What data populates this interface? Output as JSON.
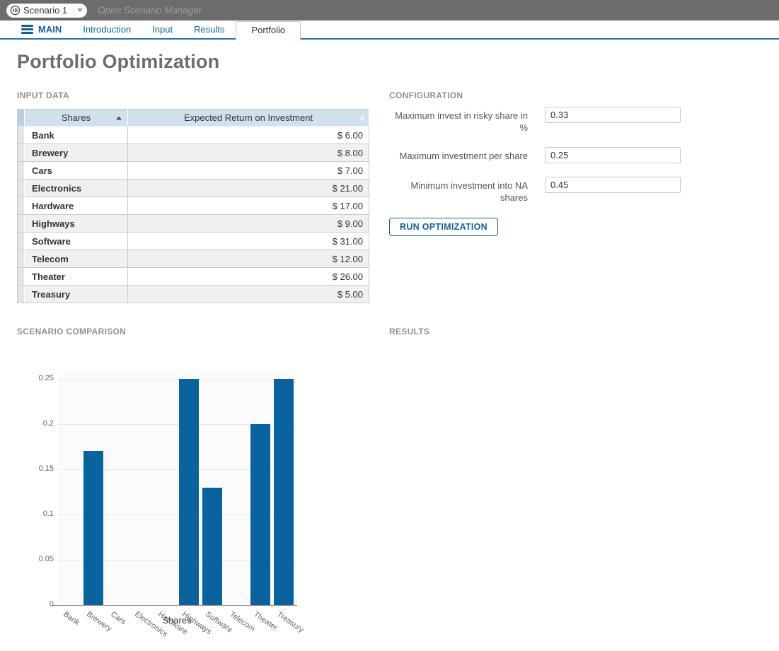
{
  "topbar": {
    "scenario_label": "Scenario 1",
    "manager_label": "Open Scenario Manager"
  },
  "nav": {
    "main_label": "MAIN",
    "tabs": [
      {
        "label": "Introduction"
      },
      {
        "label": "Input"
      },
      {
        "label": "Results"
      },
      {
        "label": "Portfolio"
      }
    ]
  },
  "page_title": "Portfolio Optimization",
  "sections": {
    "input_data": "INPUT DATA",
    "configuration": "CONFIGURATION",
    "scenario_comparison": "SCENARIO COMPARISON",
    "results": "RESULTS"
  },
  "table": {
    "columns": [
      "Shares",
      "Expected Return on Investment"
    ],
    "rows": [
      {
        "share": "Bank",
        "value": "$ 6.00"
      },
      {
        "share": "Brewery",
        "value": "$ 8.00"
      },
      {
        "share": "Cars",
        "value": "$ 7.00"
      },
      {
        "share": "Electronics",
        "value": "$ 21.00"
      },
      {
        "share": "Hardware",
        "value": "$ 17.00"
      },
      {
        "share": "Highways",
        "value": "$ 9.00"
      },
      {
        "share": "Software",
        "value": "$ 31.00"
      },
      {
        "share": "Telecom",
        "value": "$ 12.00"
      },
      {
        "share": "Theater",
        "value": "$ 26.00"
      },
      {
        "share": "Treasury",
        "value": "$ 5.00"
      }
    ]
  },
  "config": {
    "fields": [
      {
        "label": "Maximum invest in risky share in %",
        "value": "0.33"
      },
      {
        "label": "Maximum investment per share",
        "value": "0.25"
      },
      {
        "label": "Minimum investment into NA shares",
        "value": "0.45"
      }
    ],
    "run_label": "RUN OPTIMIZATION"
  },
  "chart_data": {
    "type": "bar",
    "title": "",
    "xlabel": "Shares",
    "ylabel": "",
    "categories": [
      "Bank",
      "Brewery",
      "Cars",
      "Electronics",
      "Hardware",
      "Highways",
      "Software",
      "Telecom",
      "Theater",
      "Treasury"
    ],
    "values": [
      0,
      0.17,
      0,
      0,
      0,
      0.25,
      0.13,
      0,
      0.2,
      0.25
    ],
    "ylim": [
      0,
      0.26
    ],
    "yticks": [
      0,
      0.05,
      0.1,
      0.15,
      0.2,
      0.25
    ],
    "grid": true,
    "legend": "none",
    "bar_color": "#08639e"
  },
  "colors": {
    "accent_blue": "#176199",
    "tab_underline": "#2372b0",
    "topbar_bg": "#6c6c6c",
    "table_header_bg": "#cfe1ed",
    "bar_color": "#08639e"
  }
}
